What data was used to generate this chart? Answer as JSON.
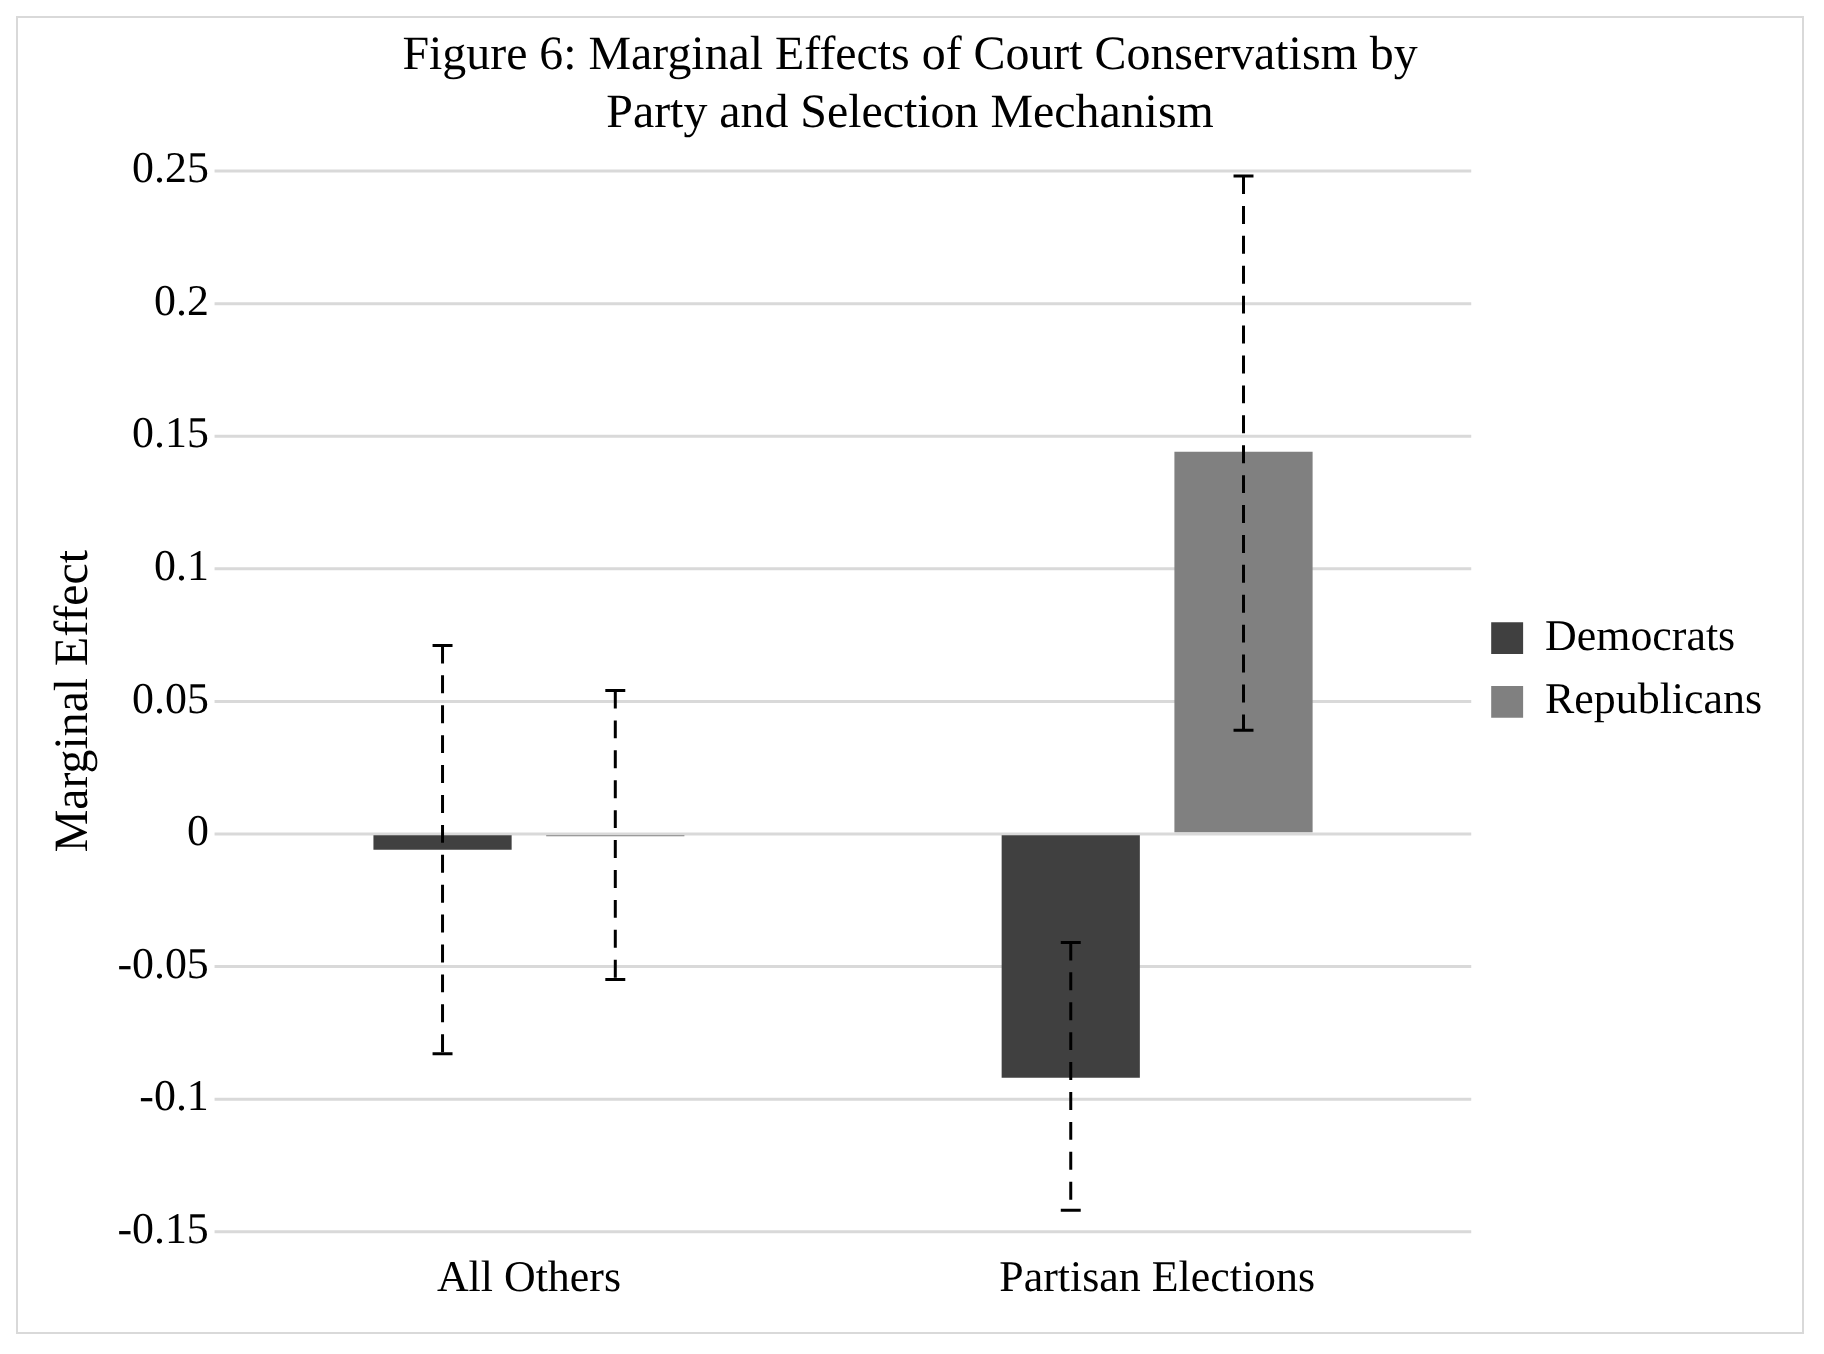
{
  "chart_data": {
    "type": "bar",
    "title": "Figure 6: Marginal Effects of Court Conservatism by Party and Selection Mechanism",
    "ylabel": "Marginal Effect",
    "categories": [
      "All Others",
      "Partisan Elections"
    ],
    "series": [
      {
        "name": "Democrats",
        "color": "#404040",
        "values": [
          -0.006,
          -0.092
        ],
        "errors": [
          [
            -0.083,
            0.071
          ],
          [
            -0.142,
            -0.041
          ]
        ]
      },
      {
        "name": "Republicans",
        "color": "#808080",
        "values": [
          -0.001,
          0.144
        ],
        "errors": [
          [
            -0.055,
            0.054
          ],
          [
            0.039,
            0.248
          ]
        ]
      }
    ],
    "ylim": [
      -0.15,
      0.25
    ],
    "yticks": [
      -0.15,
      -0.1,
      -0.05,
      0,
      0.05,
      0.1,
      0.15,
      0.2,
      0.25
    ],
    "grid": "y",
    "legend": "right"
  }
}
